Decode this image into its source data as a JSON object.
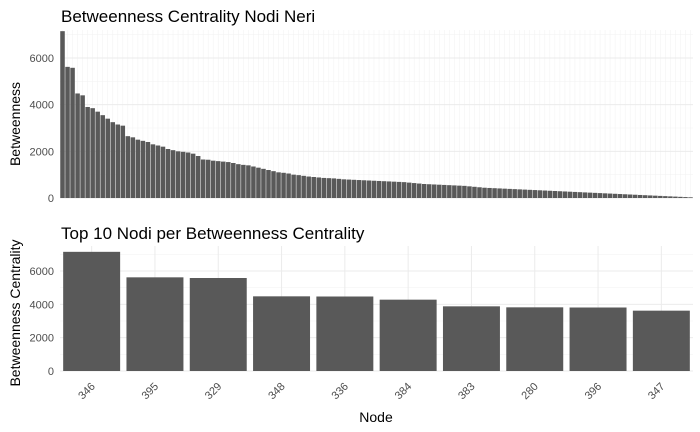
{
  "chart_data": [
    {
      "type": "bar",
      "title": "Betweenness Centrality Nodi Neri",
      "xlabel": "",
      "ylabel": "Betweenness",
      "ylim": [
        0,
        7200
      ],
      "yticks": [
        0,
        2000,
        4000,
        6000
      ],
      "grid": true,
      "bar_color": "#595959",
      "values": [
        7150,
        5620,
        5580,
        4480,
        4400,
        3900,
        3850,
        3700,
        3550,
        3400,
        3250,
        3150,
        3100,
        2650,
        2600,
        2500,
        2450,
        2400,
        2300,
        2250,
        2200,
        2100,
        2050,
        2000,
        1980,
        1950,
        1900,
        1800,
        1650,
        1640,
        1600,
        1580,
        1560,
        1540,
        1500,
        1450,
        1420,
        1400,
        1350,
        1300,
        1250,
        1200,
        1150,
        1100,
        1080,
        1050,
        1000,
        980,
        950,
        920,
        900,
        880,
        860,
        850,
        840,
        820,
        800,
        790,
        780,
        770,
        760,
        750,
        740,
        730,
        720,
        710,
        700,
        690,
        680,
        660,
        640,
        620,
        600,
        590,
        580,
        570,
        560,
        550,
        540,
        530,
        520,
        500,
        480,
        460,
        440,
        430,
        420,
        410,
        400,
        390,
        380,
        370,
        360,
        350,
        340,
        330,
        320,
        310,
        300,
        290,
        280,
        270,
        260,
        250,
        240,
        230,
        220,
        210,
        200,
        190,
        180,
        170,
        160,
        150,
        140,
        130,
        120,
        110,
        100,
        90,
        80,
        70,
        60,
        50,
        40,
        30
      ]
    },
    {
      "type": "bar",
      "title": "Top 10 Nodi per Betweenness Centrality",
      "xlabel": "Node",
      "ylabel": "Betweenness Centrality",
      "ylim": [
        0,
        7500
      ],
      "yticks": [
        0,
        2000,
        4000,
        6000
      ],
      "grid": true,
      "bar_color": "#595959",
      "categories": [
        "346",
        "395",
        "329",
        "348",
        "336",
        "384",
        "383",
        "280",
        "396",
        "347"
      ],
      "values": [
        7150,
        5620,
        5580,
        4480,
        4470,
        4280,
        3880,
        3820,
        3810,
        3620
      ]
    }
  ]
}
